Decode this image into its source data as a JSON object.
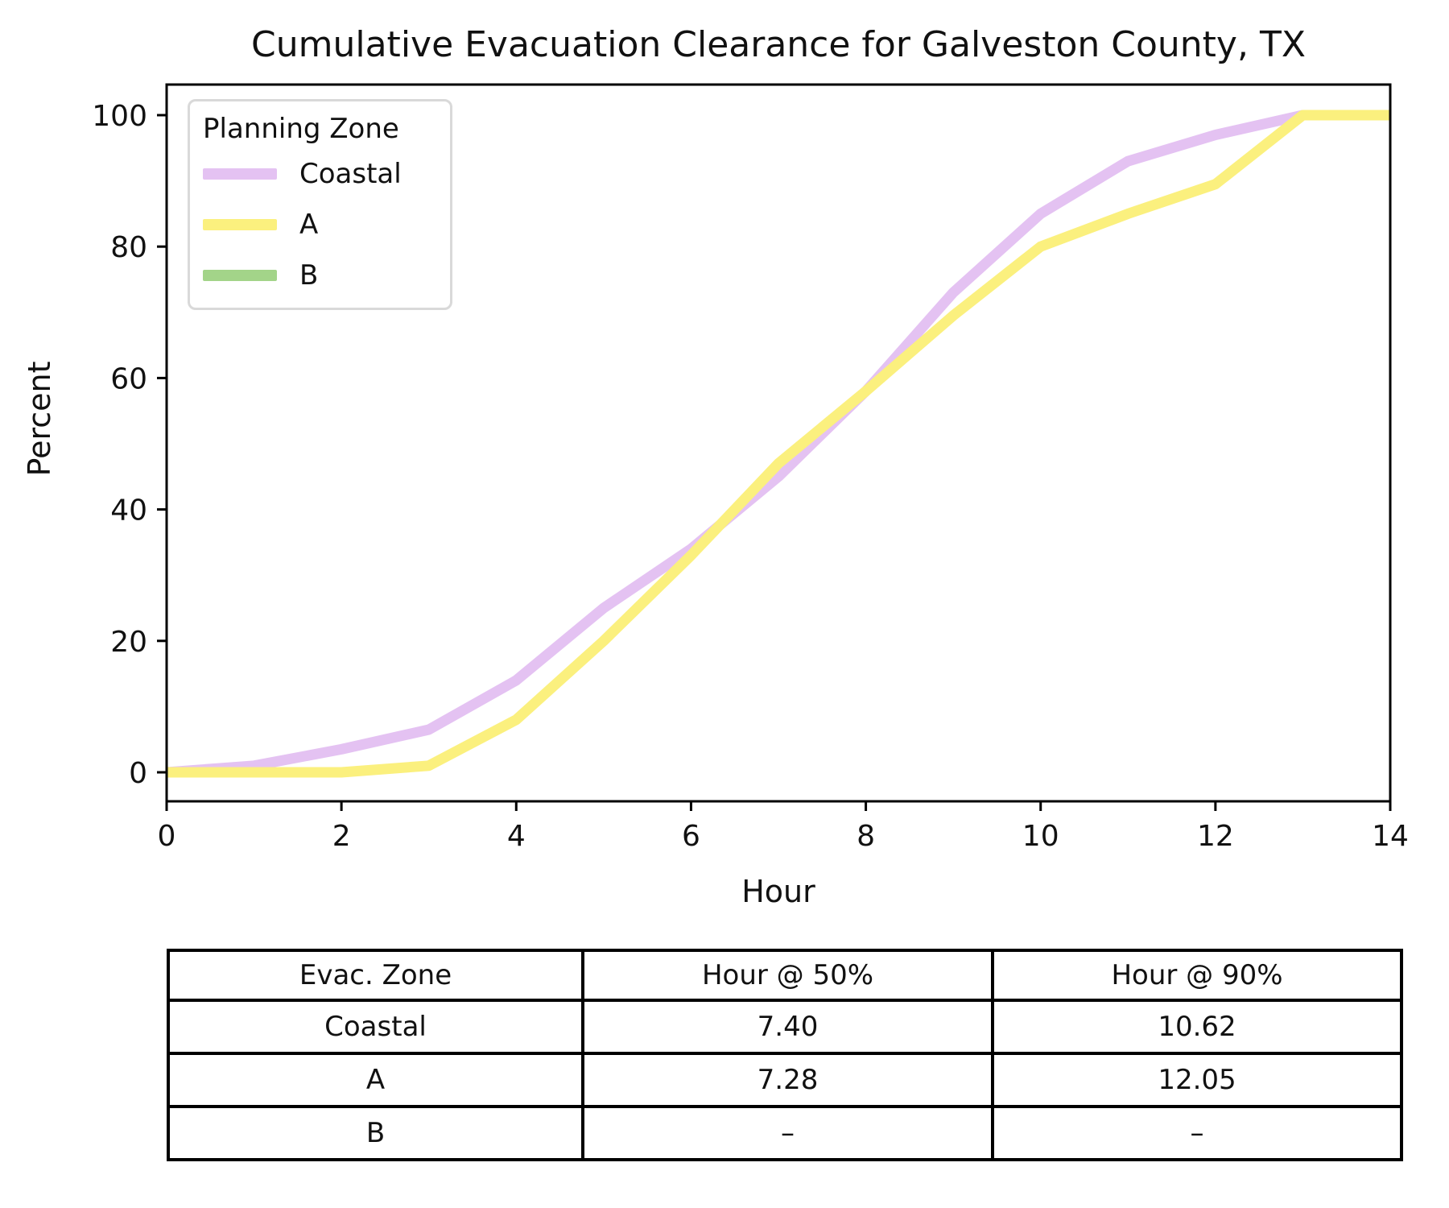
{
  "chart_data": {
    "type": "line",
    "title": "Cumulative Evacuation Clearance for Galveston County, TX",
    "xlabel": "Hour",
    "ylabel": "Percent",
    "xlim": [
      0,
      14
    ],
    "ylim": [
      0,
      100
    ],
    "x_ticks": [
      0,
      2,
      4,
      6,
      8,
      10,
      12,
      14
    ],
    "y_ticks": [
      0,
      20,
      40,
      60,
      80,
      100
    ],
    "grid": false,
    "legend": {
      "title": "Planning Zone",
      "position": "upper-left"
    },
    "x": [
      0,
      1,
      2,
      3,
      4,
      5,
      6,
      7,
      8,
      9,
      10,
      11,
      12,
      13,
      14
    ],
    "series": [
      {
        "name": "Coastal",
        "color": "#e4c2f2",
        "values": [
          0,
          1,
          3.5,
          6.5,
          14,
          25,
          34,
          45,
          58,
          73,
          85,
          93,
          97,
          100,
          100
        ]
      },
      {
        "name": "A",
        "color": "#fbf07e",
        "values": [
          0,
          0,
          0,
          1,
          8,
          20,
          33,
          47,
          58,
          69.5,
          80,
          85,
          89.5,
          100,
          100
        ]
      },
      {
        "name": "B",
        "color": "#a3d489",
        "values": []
      }
    ]
  },
  "table": {
    "headers": [
      "Evac. Zone",
      "Hour @ 50%",
      "Hour @ 90%"
    ],
    "rows": [
      {
        "zone": "Coastal",
        "h50": "7.40",
        "h90": "10.62"
      },
      {
        "zone": "A",
        "h50": "7.28",
        "h90": "12.05"
      },
      {
        "zone": "B",
        "h50": "–",
        "h90": "–"
      }
    ]
  },
  "layout_colors": {
    "axis": "#000000",
    "legend_border": "#d9d9d9",
    "text": "#111111"
  }
}
